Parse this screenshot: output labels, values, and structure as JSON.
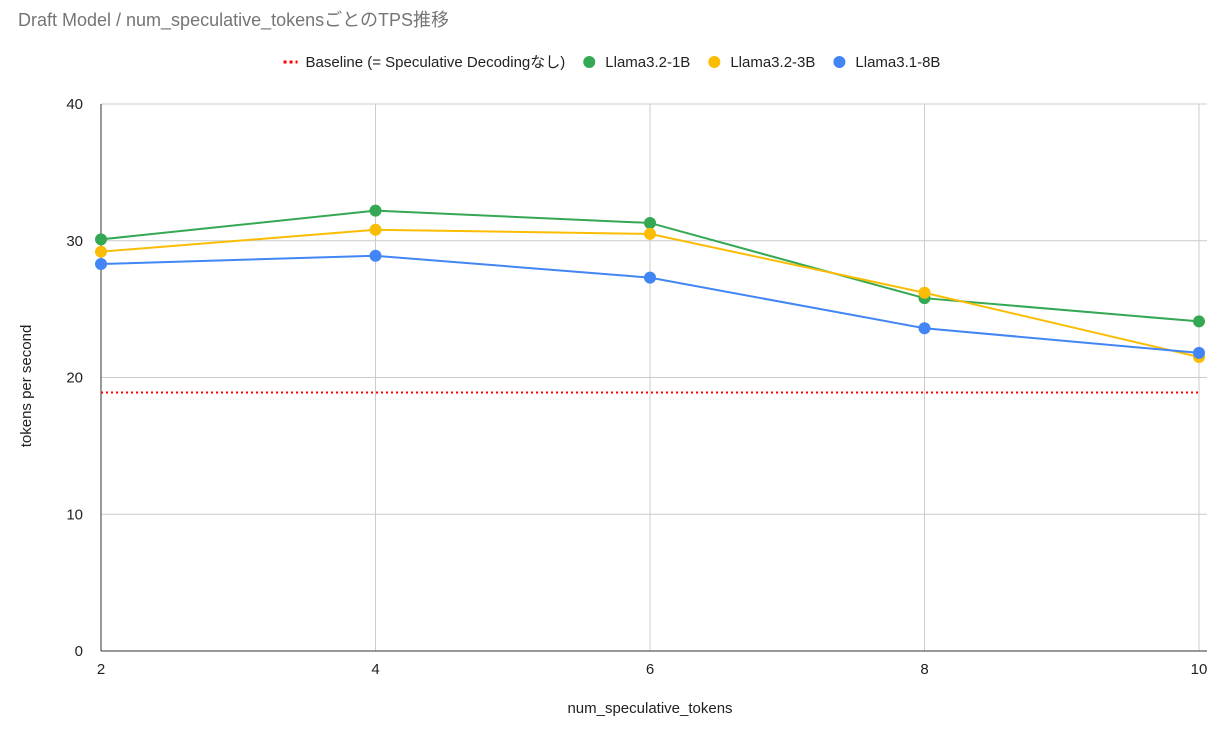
{
  "chart_data": {
    "type": "line",
    "title": "Draft Model / num_speculative_tokensごとのTPS推移",
    "xlabel": "num_speculative_tokens",
    "ylabel": "tokens per second",
    "x": [
      2,
      4,
      6,
      8,
      10
    ],
    "xticks": [
      "2",
      "4",
      "6",
      "8",
      "10"
    ],
    "xlim": [
      2,
      10
    ],
    "ylim": [
      0,
      40
    ],
    "yticks": [
      "0",
      "10",
      "20",
      "30",
      "40"
    ],
    "grid": true,
    "legend_position": "top",
    "baseline": {
      "name": "Baseline (= Speculative Decodingなし)",
      "value": 18.9,
      "color": "#ff0000",
      "style": "dotted"
    },
    "series": [
      {
        "name": "Llama3.2-1B",
        "color": "#34a853",
        "values": [
          30.1,
          32.2,
          31.3,
          25.8,
          24.1
        ]
      },
      {
        "name": "Llama3.2-3B",
        "color": "#fbbc04",
        "values": [
          29.2,
          30.8,
          30.5,
          26.2,
          21.5
        ]
      },
      {
        "name": "Llama3.1-8B",
        "color": "#4285f4",
        "values": [
          28.3,
          28.9,
          27.3,
          23.6,
          21.8
        ]
      }
    ]
  }
}
